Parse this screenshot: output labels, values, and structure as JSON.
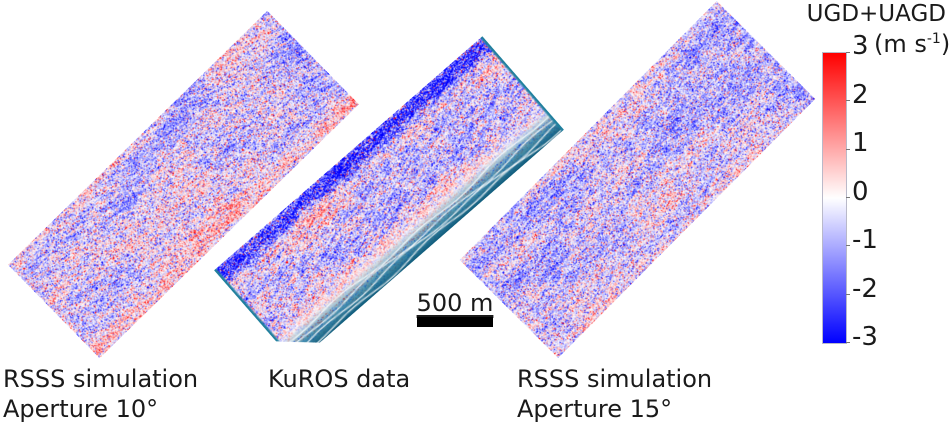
{
  "figure": {
    "panels": [
      {
        "caption_line1": "RSSS simulation",
        "caption_line2": "Aperture 10°"
      },
      {
        "caption_line1": "KuROS data",
        "caption_line2": ""
      },
      {
        "caption_line1": "RSSS simulation",
        "caption_line2": "Aperture 15°"
      }
    ],
    "scalebar_label": "500 m",
    "colorbar": {
      "title": "UGD+UAGD",
      "unit_prefix": "(m s",
      "unit_exponent": "-1",
      "unit_suffix": ")",
      "max_color": "#ff0000",
      "mid_color": "#ffffff",
      "min_color": "#0000ff",
      "frame_color": "#b9b9c9"
    },
    "kuros_border_color": "#20809e"
  },
  "chart_data": {
    "type": "heatmap",
    "title": "UGD+UAGD (m s-1)",
    "panels": [
      {
        "label": "RSSS simulation",
        "sublabel": "Aperture 10°",
        "content": "rotated swath of speckled Doppler-velocity imagery, mostly pale blue (-1 to 0 m/s) with diagonal blue filaments and sparse red speckle; pink band along lower long edge"
      },
      {
        "label": "KuROS data",
        "sublabel": "",
        "content": "rotated swath with teal frame; dense dark-blue plus red mottled band along upper long edge; cross-hatched blue streaks; teal shore band with white wavy contour lines along lower long edge"
      },
      {
        "label": "RSSS simulation",
        "sublabel": "Aperture 15°",
        "content": "rotated swath of speckled Doppler-velocity imagery, pale blue-lavender with diagonal streaks and scattered red speckle, pinker toward lower edge"
      }
    ],
    "colorbar": {
      "label": "UGD+UAGD",
      "unit": "m s^-1",
      "min": -3,
      "max": 3,
      "ticks": [
        3,
        2,
        1,
        0,
        -1,
        -2,
        -3
      ],
      "colormap": "blue-white-red",
      "position": "right"
    },
    "scale_bar": {
      "label": "500 m"
    },
    "grid": false,
    "axes": "none (image panels rotated ~ -44 degrees)"
  }
}
